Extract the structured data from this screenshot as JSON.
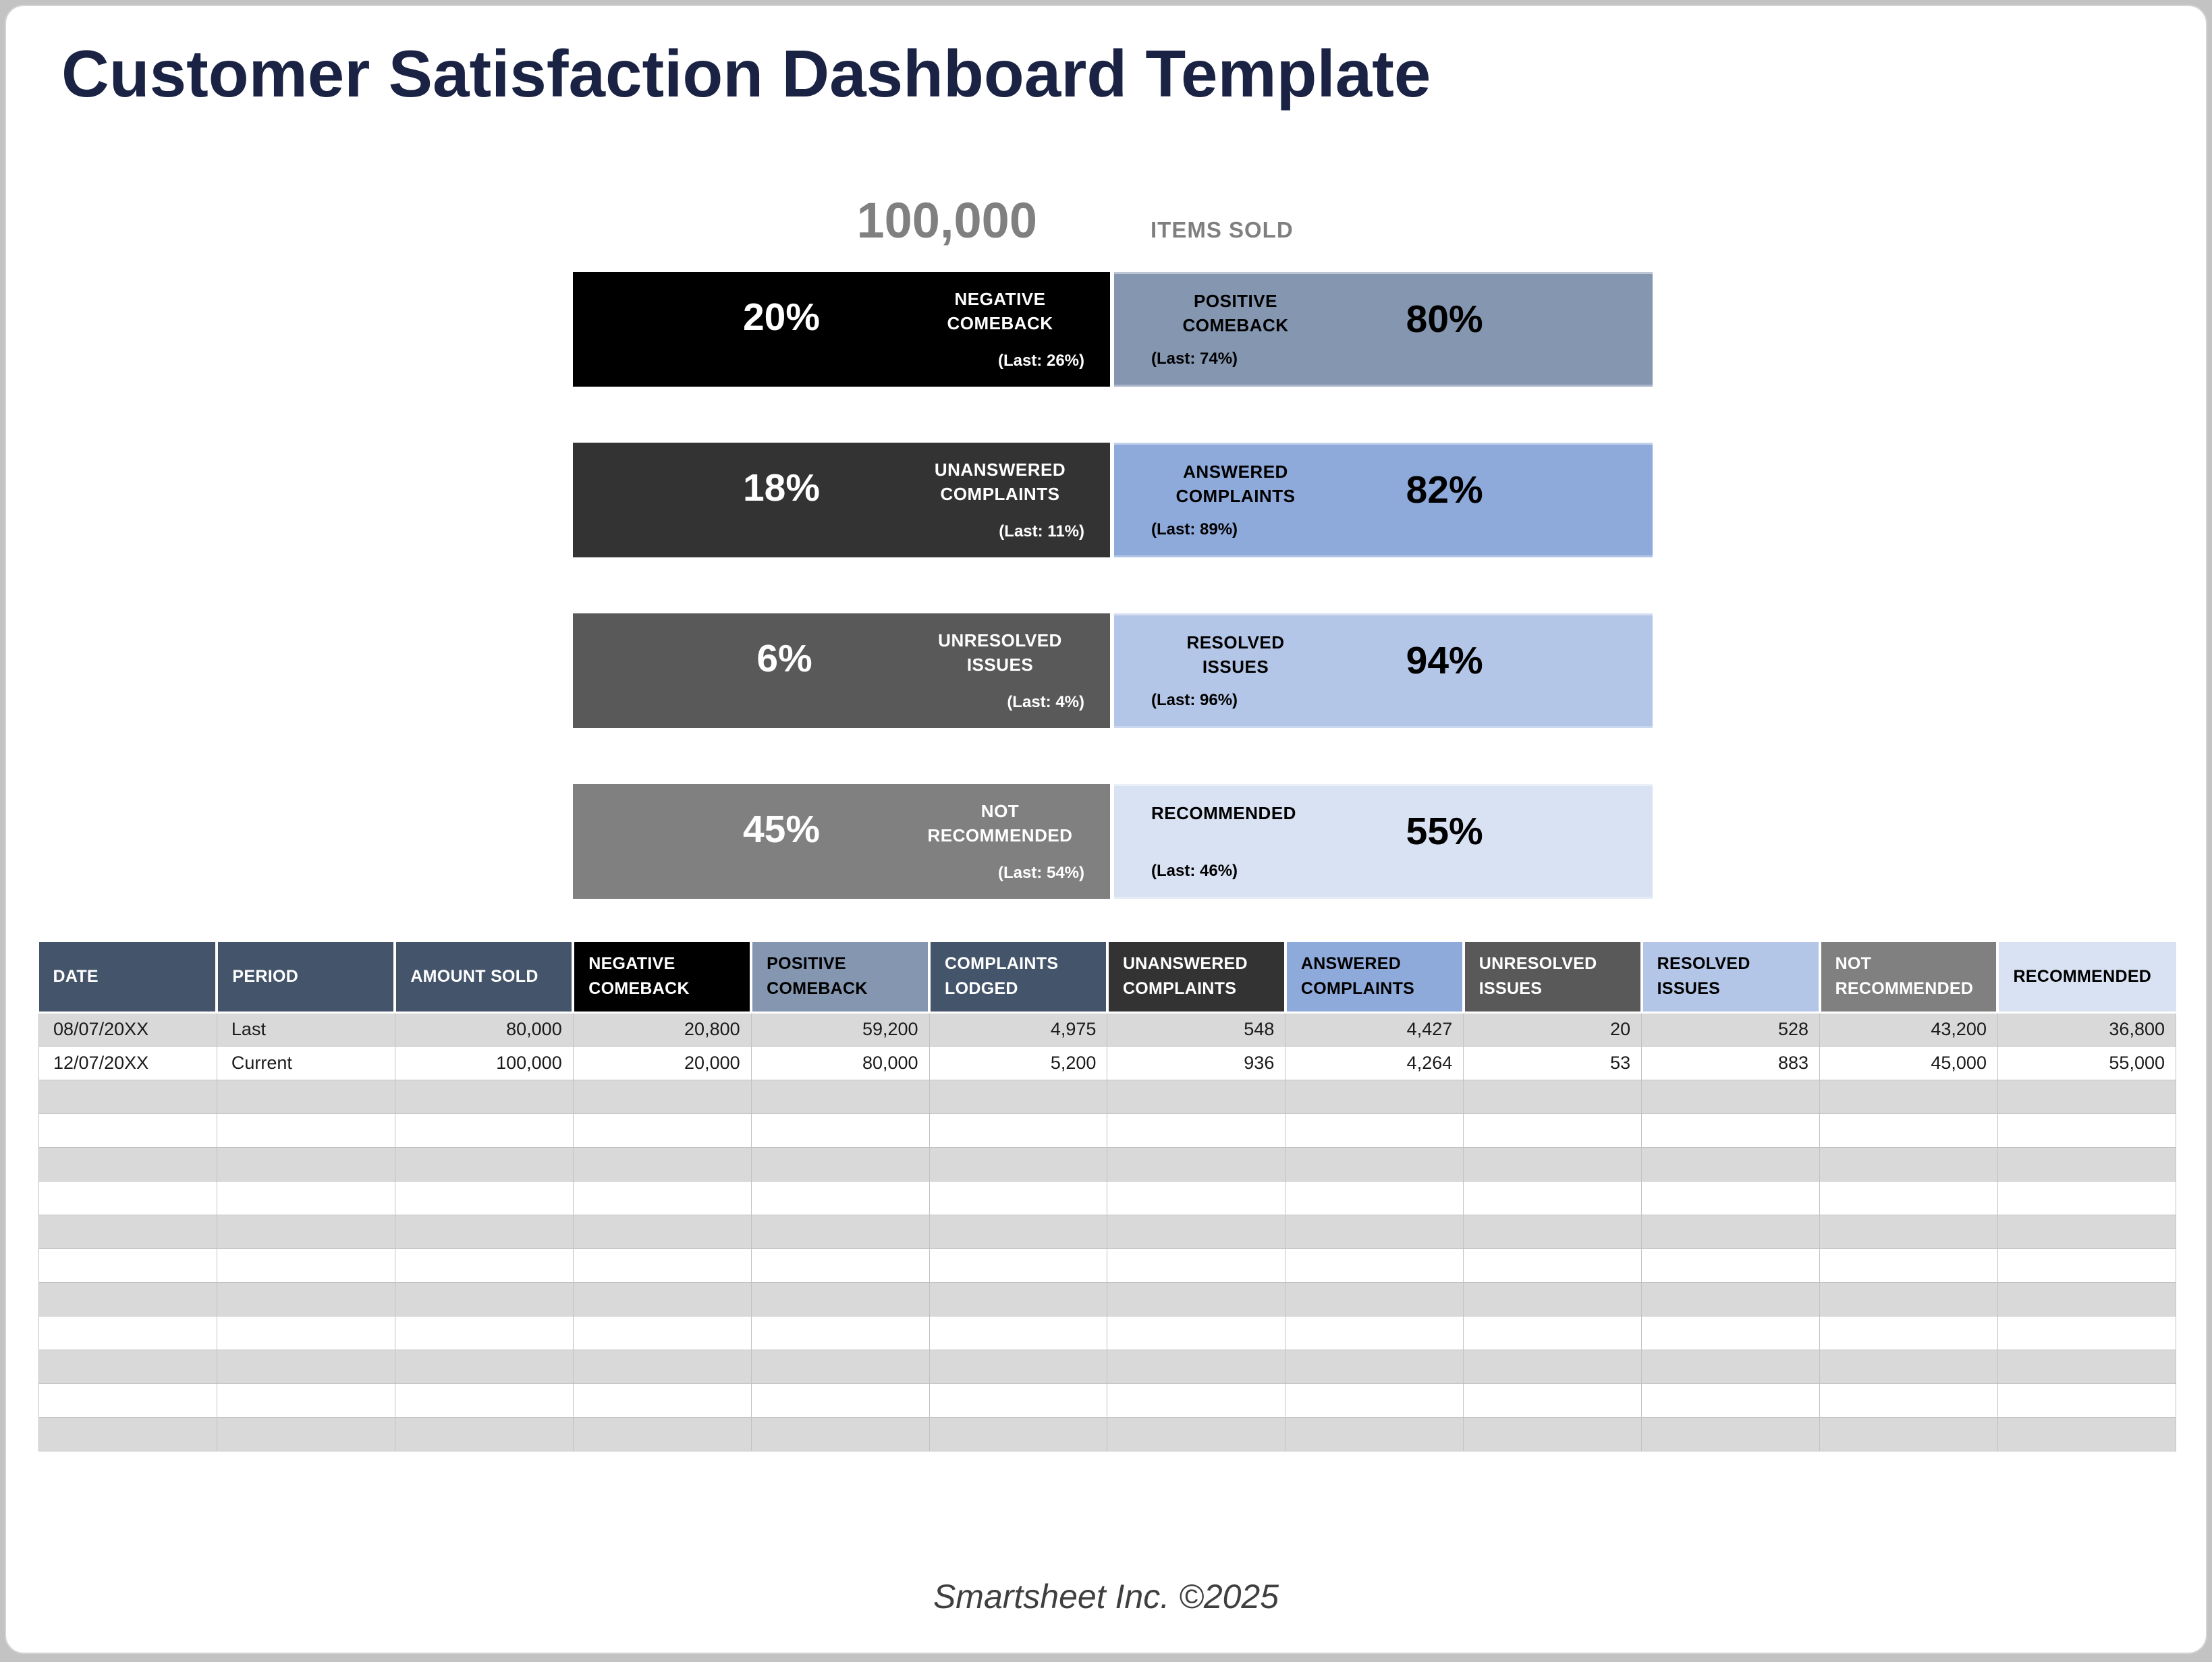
{
  "page": {
    "title": "Customer Satisfaction Dashboard Template",
    "footer": "Smartsheet Inc. ©2025"
  },
  "summary": {
    "value": "100,000",
    "label": "ITEMS SOLD"
  },
  "colors": {
    "title_navy": "#1b2344",
    "kpi_gray": "#808080",
    "table_header_slate": "#44546A",
    "stripe_gray": "#D9D9D9",
    "stripe_white": "#FFFFFF"
  },
  "bars": [
    {
      "left": {
        "pct": "20%",
        "label": "NEGATIVE COMEBACK",
        "last": "(Last: 26%)",
        "bg": "#000000"
      },
      "right": {
        "pct": "80%",
        "label": "POSITIVE COMEBACK",
        "last": "(Last: 74%)",
        "bg": "#8496B0"
      }
    },
    {
      "left": {
        "pct": "18%",
        "label": "UNANSWERED COMPLAINTS",
        "last": "(Last: 11%)",
        "bg": "#333333"
      },
      "right": {
        "pct": "82%",
        "label": "ANSWERED COMPLAINTS",
        "last": "(Last: 89%)",
        "bg": "#8EAADB"
      }
    },
    {
      "left": {
        "pct": "6%",
        "label": "UNRESOLVED ISSUES",
        "last": "(Last: 4%)",
        "bg": "#595959"
      },
      "right": {
        "pct": "94%",
        "label": "RESOLVED ISSUES",
        "last": "(Last: 96%)",
        "bg": "#B4C6E7"
      }
    },
    {
      "left": {
        "pct": "45%",
        "label": "NOT RECOMMENDED",
        "last": "(Last: 54%)",
        "bg": "#808080"
      },
      "right": {
        "pct": "55%",
        "label": "RECOMMENDED",
        "last": "(Last: 46%)",
        "bg": "#D9E2F3"
      }
    }
  ],
  "table": {
    "columns": [
      {
        "label": "DATE",
        "bg": "#44546A",
        "fg": "#FFFFFF",
        "align": "left"
      },
      {
        "label": "PERIOD",
        "bg": "#44546A",
        "fg": "#FFFFFF",
        "align": "left"
      },
      {
        "label": "AMOUNT SOLD",
        "bg": "#44546A",
        "fg": "#FFFFFF",
        "align": "right"
      },
      {
        "label": "NEGATIVE COMEBACK",
        "bg": "#000000",
        "fg": "#FFFFFF",
        "align": "right"
      },
      {
        "label": "POSITIVE COMEBACK",
        "bg": "#8496B0",
        "fg": "#000000",
        "align": "right"
      },
      {
        "label": "COMPLAINTS LODGED",
        "bg": "#44546A",
        "fg": "#FFFFFF",
        "align": "right"
      },
      {
        "label": "UNANSWERED COMPLAINTS",
        "bg": "#333333",
        "fg": "#FFFFFF",
        "align": "right"
      },
      {
        "label": "ANSWERED COMPLAINTS",
        "bg": "#8EAADB",
        "fg": "#000000",
        "align": "right"
      },
      {
        "label": "UNRESOLVED ISSUES",
        "bg": "#595959",
        "fg": "#FFFFFF",
        "align": "right"
      },
      {
        "label": "RESOLVED ISSUES",
        "bg": "#B4C6E7",
        "fg": "#000000",
        "align": "right"
      },
      {
        "label": "NOT RECOMMENDED",
        "bg": "#808080",
        "fg": "#FFFFFF",
        "align": "right"
      },
      {
        "label": "RECOMMENDED",
        "bg": "#D9E2F3",
        "fg": "#000000",
        "align": "right"
      }
    ],
    "rows": [
      [
        "08/07/20XX",
        "Last",
        "80,000",
        "20,800",
        "59,200",
        "4,975",
        "548",
        "4,427",
        "20",
        "528",
        "43,200",
        "36,800"
      ],
      [
        "12/07/20XX",
        "Current",
        "100,000",
        "20,000",
        "80,000",
        "5,200",
        "936",
        "4,264",
        "53",
        "883",
        "45,000",
        "55,000"
      ]
    ],
    "empty_row_count": 11
  }
}
